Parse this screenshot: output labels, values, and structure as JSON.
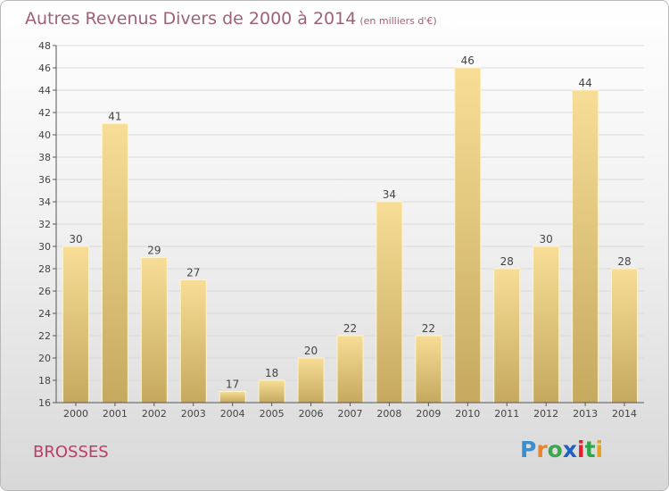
{
  "title": "Autres Revenus Divers de 2000 à 2014",
  "subtitle": "(en milliers d'€)",
  "commune": "BROSSES",
  "logo": {
    "letters": [
      "P",
      "r",
      "o",
      "x",
      "i",
      "t",
      "i"
    ],
    "colors": [
      "#3a8fd0",
      "#e8842a",
      "#3aa84a",
      "#2060c0",
      "#e02030",
      "#2aa84a",
      "#e8a020"
    ]
  },
  "colors": {
    "bar": "#e8d08a",
    "bar_dark": "#c8aa60",
    "title": "#a0607a",
    "commune": "#c03a6a"
  },
  "chart_data": {
    "type": "bar",
    "title": "Autres Revenus Divers de 2000 à 2014",
    "categories": [
      "2000",
      "2001",
      "2002",
      "2003",
      "2004",
      "2005",
      "2006",
      "2007",
      "2008",
      "2009",
      "2010",
      "2011",
      "2012",
      "2013",
      "2014"
    ],
    "values": [
      30,
      41,
      29,
      27,
      17,
      18,
      20,
      22,
      34,
      22,
      46,
      28,
      30,
      44,
      28
    ],
    "ylim": [
      16,
      48
    ],
    "yticks": [
      16,
      18,
      20,
      22,
      24,
      26,
      28,
      30,
      32,
      34,
      36,
      38,
      40,
      42,
      44,
      46,
      48
    ],
    "grid": true,
    "xlabel": "",
    "ylabel": ""
  }
}
